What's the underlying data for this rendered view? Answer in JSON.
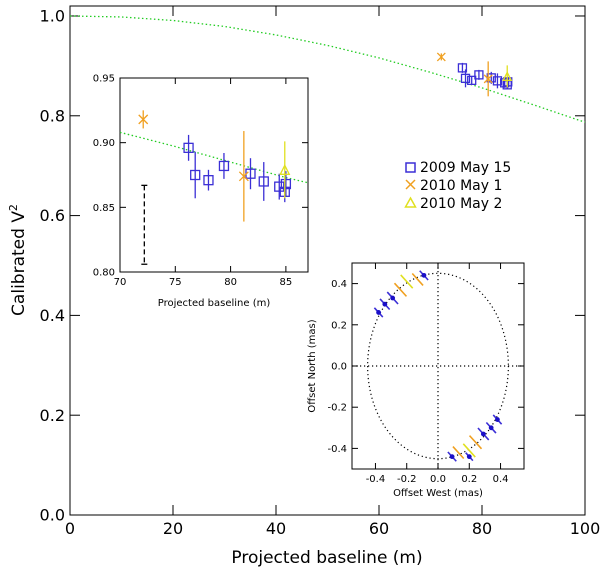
{
  "colors": {
    "may15": "#3b2fd6",
    "may1": "#f0a020",
    "may2": "#e0e020",
    "fit": "#22cc22",
    "axis": "#000000",
    "arrow": "#1a0fc8"
  },
  "chart_data": [
    {
      "id": "main",
      "type": "scatter",
      "title": "",
      "xlabel": "Projected baseline (m)",
      "ylabel": "Calibrated V",
      "ylabel_sup": "2",
      "xlim": [
        0,
        100
      ],
      "ylim": [
        0,
        1.02
      ],
      "xticks": [
        0,
        20,
        40,
        60,
        80,
        100
      ],
      "xtick_labels": [
        "0",
        "20",
        "40",
        "60",
        "80",
        "100"
      ],
      "yticks": [
        0,
        0.2,
        0.4,
        0.6,
        0.8,
        1.0
      ],
      "ytick_labels": [
        "0.0",
        "0.2",
        "0.4",
        "0.6",
        "0.8",
        "1.0"
      ],
      "legend": {
        "placement": "right-middle",
        "entries": [
          {
            "label": "2009 May 15",
            "marker": "square",
            "series": "may15"
          },
          {
            "label": "2010 May 1",
            "marker": "x",
            "series": "may1"
          },
          {
            "label": "2010 May 2",
            "marker": "triangle",
            "series": "may2"
          }
        ]
      },
      "model_curve": {
        "name": "uniform-disk fit",
        "style": "dotted",
        "x": [
          0,
          10,
          20,
          30,
          40,
          50,
          60,
          70,
          80,
          90,
          100
        ],
        "y": [
          1.0,
          0.998,
          0.991,
          0.979,
          0.962,
          0.941,
          0.916,
          0.887,
          0.856,
          0.822,
          0.787
        ]
      },
      "series": [
        {
          "name": "2009 May 15",
          "marker": "square",
          "x": [
            76.2,
            76.8,
            78.0,
            79.4,
            81.8,
            83.0,
            84.4,
            84.9,
            85.0
          ],
          "y": [
            0.896,
            0.875,
            0.871,
            0.882,
            0.876,
            0.87,
            0.866,
            0.862,
            0.868
          ],
          "err": [
            0.01,
            0.018,
            0.008,
            0.01,
            0.012,
            0.015,
            0.01,
            0.008,
            0.01
          ]
        },
        {
          "name": "2010 May 1",
          "marker": "x",
          "x": [
            72.1,
            81.2
          ],
          "y": [
            0.918,
            0.874
          ],
          "err": [
            0.007,
            0.035
          ]
        },
        {
          "name": "2010 May 2",
          "marker": "triangle",
          "x": [
            84.9
          ],
          "y": [
            0.879
          ],
          "err": [
            0.022
          ]
        }
      ]
    },
    {
      "id": "inset-zoom",
      "type": "scatter",
      "xlabel": "Projected baseline (m)",
      "ylabel": "",
      "xlim": [
        70,
        87
      ],
      "ylim": [
        0.8,
        0.95
      ],
      "xticks": [
        70,
        75,
        80,
        85
      ],
      "xtick_labels": [
        "70",
        "75",
        "80",
        "85"
      ],
      "yticks": [
        0.8,
        0.85,
        0.9,
        0.95
      ],
      "ytick_labels": [
        "0.80",
        "0.85",
        "0.90",
        "0.95"
      ],
      "systematic_bar": {
        "x": 72.2,
        "y_low": 0.806,
        "y_high": 0.867,
        "style": "dashed"
      },
      "model_curve": {
        "style": "dotted",
        "x": [
          70,
          75,
          80,
          85,
          87
        ],
        "y": [
          0.908,
          0.897,
          0.885,
          0.873,
          0.869
        ]
      },
      "shares_series_with": "main"
    },
    {
      "id": "inset-uv",
      "type": "scatter",
      "xlabel": "Offset West (mas)",
      "ylabel": "Offset North (mas)",
      "xlim": [
        -0.55,
        0.55
      ],
      "ylim": [
        -0.5,
        0.5
      ],
      "xticks": [
        -0.4,
        -0.2,
        0.0,
        0.2,
        0.4
      ],
      "xtick_labels": [
        "-0.4",
        "-0.2",
        "0.0",
        "0.2",
        "0.4"
      ],
      "yticks": [
        -0.4,
        -0.2,
        0.0,
        0.2,
        0.4
      ],
      "ytick_labels": [
        "-0.4",
        "-0.2",
        "0.0",
        "0.2",
        "0.4"
      ],
      "circle_radius_mas": 0.45,
      "segments": [
        {
          "series": "may15",
          "x": -0.29,
          "y": 0.33,
          "angle": -40,
          "len": 0.09
        },
        {
          "series": "may15",
          "x": -0.34,
          "y": 0.3,
          "angle": -40,
          "len": 0.08
        },
        {
          "series": "may15",
          "x": -0.38,
          "y": 0.26,
          "angle": -40,
          "len": 0.07
        },
        {
          "series": "may1",
          "x": -0.24,
          "y": 0.37,
          "angle": -40,
          "len": 0.1
        },
        {
          "series": "may1",
          "x": -0.13,
          "y": 0.42,
          "angle": -40,
          "len": 0.09
        },
        {
          "series": "may2",
          "x": -0.2,
          "y": 0.41,
          "angle": -40,
          "len": 0.1
        },
        {
          "series": "may15",
          "x": -0.09,
          "y": 0.44,
          "angle": -40,
          "len": 0.07
        },
        {
          "series": "may15",
          "x": 0.29,
          "y": -0.33,
          "angle": -40,
          "len": 0.09
        },
        {
          "series": "may15",
          "x": 0.34,
          "y": -0.3,
          "angle": -40,
          "len": 0.08
        },
        {
          "series": "may15",
          "x": 0.38,
          "y": -0.26,
          "angle": -40,
          "len": 0.07
        },
        {
          "series": "may1",
          "x": 0.24,
          "y": -0.37,
          "angle": -40,
          "len": 0.1
        },
        {
          "series": "may1",
          "x": 0.13,
          "y": -0.42,
          "angle": -40,
          "len": 0.09
        },
        {
          "series": "may2",
          "x": 0.2,
          "y": -0.41,
          "angle": -40,
          "len": 0.1
        },
        {
          "series": "may15",
          "x": 0.09,
          "y": -0.44,
          "angle": -40,
          "len": 0.07
        },
        {
          "series": "may15",
          "x": 0.2,
          "y": -0.44,
          "angle": -40,
          "len": 0.06
        }
      ]
    }
  ]
}
